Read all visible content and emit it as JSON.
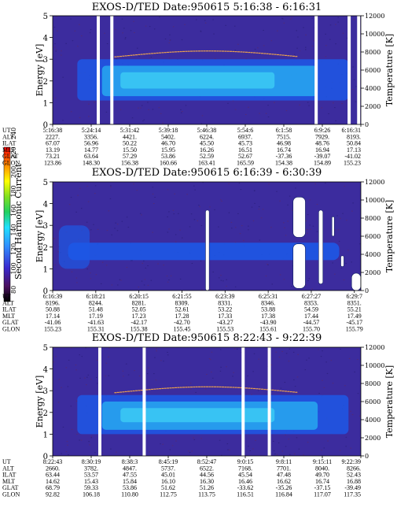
{
  "colors": {
    "background": "#ffffff",
    "spectrogram_bg": "#3c2c9e",
    "mid_blue": "#1d58e6",
    "light_blue": "#27a3ee",
    "cyan": "#3fd0f4",
    "gap": "#ffffff",
    "speckle": "#5a2a6a"
  },
  "colorbar": {
    "label": "Second Harmonic Current",
    "ticks": [
      "80",
      "100",
      "120",
      "140",
      "160",
      "180",
      "200",
      "220",
      "240"
    ]
  },
  "chart_data": [
    {
      "type": "heatmap",
      "title": "EXOS-D/TED   Date:950615  5:16:38 - 6:16:31",
      "ylabel": "Energy [eV]",
      "y2label": "Temperature [K]",
      "ylim": [
        0,
        5
      ],
      "y2lim": [
        0,
        12000
      ],
      "yticks": [
        "0",
        "1",
        "2",
        "3",
        "4",
        "5"
      ],
      "y2ticks": [
        "0",
        "2000",
        "4000",
        "6000",
        "8000",
        "10000",
        "12000"
      ],
      "gaps_time": [
        0.148,
        0.192,
        0.855,
        0.962,
        0.993
      ],
      "core_energy": [
        1.3,
        2.7
      ],
      "rows": [
        {
          "name": "UT",
          "values": [
            "5:16:38",
            "5:24:14",
            "5:31:42",
            "5:39:18",
            "5:46:38",
            "5:54:6",
            "6:1:58",
            "6:9:26",
            "6:16:31"
          ]
        },
        {
          "name": "ALT",
          "values": [
            "2227.",
            "3356.",
            "4421.",
            "5402.",
            "6224.",
            "6937.",
            "7515.",
            "7929.",
            "8193."
          ]
        },
        {
          "name": "ILAT",
          "values": [
            "67.07",
            "56.96",
            "50.22",
            "46.70",
            "45.50",
            "45.73",
            "46.98",
            "48.76",
            "50.84"
          ]
        },
        {
          "name": "MLT",
          "values": [
            "13.19",
            "14.77",
            "15.50",
            "15.95",
            "16.26",
            "16.51",
            "16.74",
            "16.94",
            "17.13"
          ]
        },
        {
          "name": "GLAT",
          "values": [
            "73.21",
            "63.64",
            "57.29",
            "53.86",
            "52.59",
            "52.67",
            "-37.36",
            "-39.07",
            "-41.02"
          ]
        },
        {
          "name": "GLON",
          "values": [
            "123.86",
            "148.30",
            "156.38",
            "160.66",
            "163.41",
            "165.59",
            "154.38",
            "154.89",
            "155.23"
          ]
        }
      ]
    },
    {
      "type": "heatmap",
      "title": "EXOS-D/TED   Date:950615  6:16:39 - 6:30:39",
      "ylabel": "Energy [eV]",
      "y2label": "Temperature [K]",
      "ylim": [
        0,
        5
      ],
      "y2lim": [
        0,
        12000
      ],
      "yticks": [
        "0",
        "1",
        "2",
        "3",
        "4",
        "5"
      ],
      "y2ticks": [
        "0",
        "2000",
        "4000",
        "6000",
        "8000",
        "10000",
        "12000"
      ],
      "blobs": [
        {
          "t": 0.502,
          "e0": 0.0,
          "e1": 3.7,
          "w": 0.012
        },
        {
          "t": 0.8,
          "e0": 2.45,
          "e1": 4.3,
          "w": 0.04
        },
        {
          "t": 0.8,
          "e0": 0.1,
          "e1": 2.15,
          "w": 0.04
        },
        {
          "t": 0.87,
          "e0": 0.3,
          "e1": 3.7,
          "w": 0.014
        },
        {
          "t": 0.91,
          "e0": 2.5,
          "e1": 3.4,
          "w": 0.008
        },
        {
          "t": 0.94,
          "e0": 1.1,
          "e1": 1.6,
          "w": 0.01
        },
        {
          "t": 0.985,
          "e0": 0.0,
          "e1": 0.8,
          "w": 0.03
        }
      ],
      "rows": [
        {
          "name": "UT",
          "values": [
            "6:16:39",
            "6:18:21",
            "6:20:15",
            "6:21:55",
            "6:23:39",
            "6:25:31",
            "6:27:27",
            "6:29:7"
          ]
        },
        {
          "name": "ALT",
          "values": [
            "8196.",
            "8244.",
            "8281.",
            "8309.",
            "8331.",
            "8346.",
            "8353.",
            "8351."
          ]
        },
        {
          "name": "ILAT",
          "values": [
            "50.88",
            "51.48",
            "52.05",
            "52.61",
            "53.22",
            "53.88",
            "54.59",
            "55.21"
          ]
        },
        {
          "name": "MLT",
          "values": [
            "17.14",
            "17.19",
            "17.23",
            "17.28",
            "17.33",
            "17.38",
            "17.44",
            "17.49"
          ]
        },
        {
          "name": "GLAT",
          "values": [
            "-41.06",
            "-41.63",
            "-42.17",
            "-42.70",
            "-43.27",
            "-43.90",
            "-44.57",
            "-45.17"
          ]
        },
        {
          "name": "GLON",
          "values": [
            "155.23",
            "155.31",
            "155.38",
            "155.45",
            "155.53",
            "155.61",
            "155.70",
            "155.79"
          ]
        }
      ]
    },
    {
      "type": "heatmap",
      "title": "EXOS-D/TED   Date:950615  8:22:43 - 9:22:39",
      "ylabel": "Energy [eV]",
      "y2label": "Temperature [K]",
      "ylim": [
        0,
        5
      ],
      "y2lim": [
        0,
        12000
      ],
      "yticks": [
        "0",
        "1",
        "2",
        "3",
        "4",
        "5"
      ],
      "y2ticks": [
        "0",
        "2000",
        "4000",
        "6000",
        "8000",
        "10000",
        "12000"
      ],
      "gaps_time": [
        0.153,
        0.297,
        0.618,
        0.703
      ],
      "core_energy": [
        1.2,
        2.5
      ],
      "rows": [
        {
          "name": "UT",
          "values": [
            "8:22:43",
            "8:30:19",
            "8:38:3",
            "8:45:19",
            "8:52:47",
            "9:0:15",
            "9:8:11",
            "9:15:11",
            "9:22:39"
          ]
        },
        {
          "name": "ALT",
          "values": [
            "2660.",
            "3782.",
            "4847.",
            "5737.",
            "6522.",
            "7168.",
            "7701.",
            "8040.",
            "8266."
          ]
        },
        {
          "name": "ILAT",
          "values": [
            "63.44",
            "53.57",
            "47.55",
            "45.01",
            "44.56",
            "45.54",
            "47.48",
            "49.70",
            "52.43"
          ]
        },
        {
          "name": "MLT",
          "values": [
            "14.62",
            "15.43",
            "15.84",
            "16.10",
            "16.30",
            "16.46",
            "16.62",
            "16.74",
            "16.88"
          ]
        },
        {
          "name": "GLAT",
          "values": [
            "68.79",
            "59.33",
            "53.86",
            "51.62",
            "51.26",
            "-33.62",
            "-35.26",
            "-37.15",
            "-39.49"
          ]
        },
        {
          "name": "GLON",
          "values": [
            "92.82",
            "106.18",
            "110.80",
            "112.75",
            "113.75",
            "116.51",
            "116.84",
            "117.07",
            "117.35"
          ]
        }
      ]
    }
  ]
}
